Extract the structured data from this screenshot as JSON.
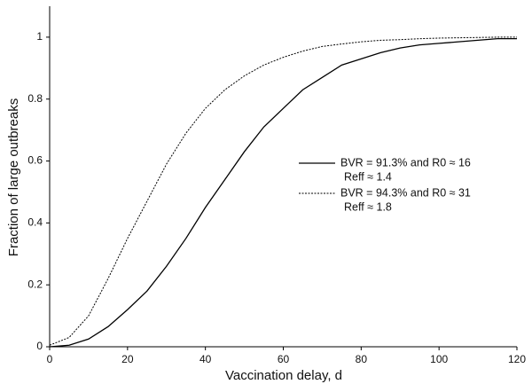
{
  "chart_data": {
    "type": "line",
    "x_label": "Vaccination delay, d",
    "y_label": "Fraction of large outbreaks",
    "x": [
      0,
      5,
      10,
      15,
      20,
      25,
      30,
      35,
      40,
      45,
      50,
      55,
      60,
      65,
      70,
      75,
      80,
      85,
      90,
      95,
      100,
      105,
      110,
      115,
      120
    ],
    "series": [
      {
        "name": "BVR = 91.3% and R0 ≈ 16",
        "note": "Reff ≈ 1.4",
        "color": "#000000",
        "dash": "solid",
        "values": [
          0,
          0.005,
          0.025,
          0.065,
          0.12,
          0.18,
          0.26,
          0.35,
          0.45,
          0.54,
          0.63,
          0.71,
          0.77,
          0.83,
          0.87,
          0.91,
          0.93,
          0.95,
          0.965,
          0.975,
          0.98,
          0.985,
          0.99,
          0.995,
          0.995
        ]
      },
      {
        "name": "BVR = 94.3% and R0 ≈ 31",
        "note": "Reff ≈ 1.8",
        "color": "#000000",
        "dash": "dotted",
        "values": [
          0.005,
          0.03,
          0.1,
          0.22,
          0.35,
          0.47,
          0.59,
          0.69,
          0.77,
          0.83,
          0.875,
          0.91,
          0.935,
          0.955,
          0.97,
          0.978,
          0.985,
          0.99,
          0.992,
          0.995,
          0.997,
          0.998,
          0.999,
          1.0,
          1.0
        ]
      }
    ],
    "xlim": [
      0,
      120
    ],
    "xticks": [
      0,
      20,
      40,
      60,
      80,
      100,
      120
    ],
    "ylim": [
      0,
      1.1
    ],
    "yticks": [
      0,
      0.2,
      0.4,
      0.6,
      0.8,
      1
    ],
    "grid": false
  }
}
